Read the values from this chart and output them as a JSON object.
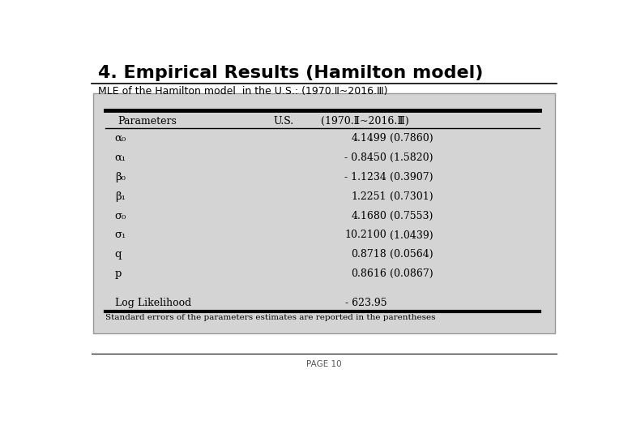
{
  "title": "4. Empirical Results (Hamilton model)",
  "subtitle": "MLE of the Hamilton model  in the U.S.: (1970.Ⅱ~2016.Ⅲ)",
  "rows": [
    [
      "α₀",
      "4.1499",
      "(0.7860)"
    ],
    [
      "α₁",
      "- 0.8450",
      "(1.5820)"
    ],
    [
      "β₀",
      "- 1.1234",
      "(0.3907)"
    ],
    [
      "β₁",
      "1.2251",
      "(0.7301)"
    ],
    [
      "σ₀",
      "4.1680",
      "(0.7553)"
    ],
    [
      "σ₁",
      "10.2100",
      "(1.0439)"
    ],
    [
      "q",
      "0.8718",
      "(0.0564)"
    ],
    [
      "p",
      "0.8616",
      "(0.0867)"
    ]
  ],
  "log_likelihood_label": "Log Likelihood",
  "log_likelihood_value": "- 623.95",
  "footnote": "Standard errors of the parameters estimates are reported in the parentheses",
  "page": "PAGE 10",
  "bg_color": "#d4d4d4",
  "title_fontsize": 16,
  "subtitle_fontsize": 9,
  "header_fontsize": 9,
  "row_fontsize": 9,
  "footnote_fontsize": 7.5
}
